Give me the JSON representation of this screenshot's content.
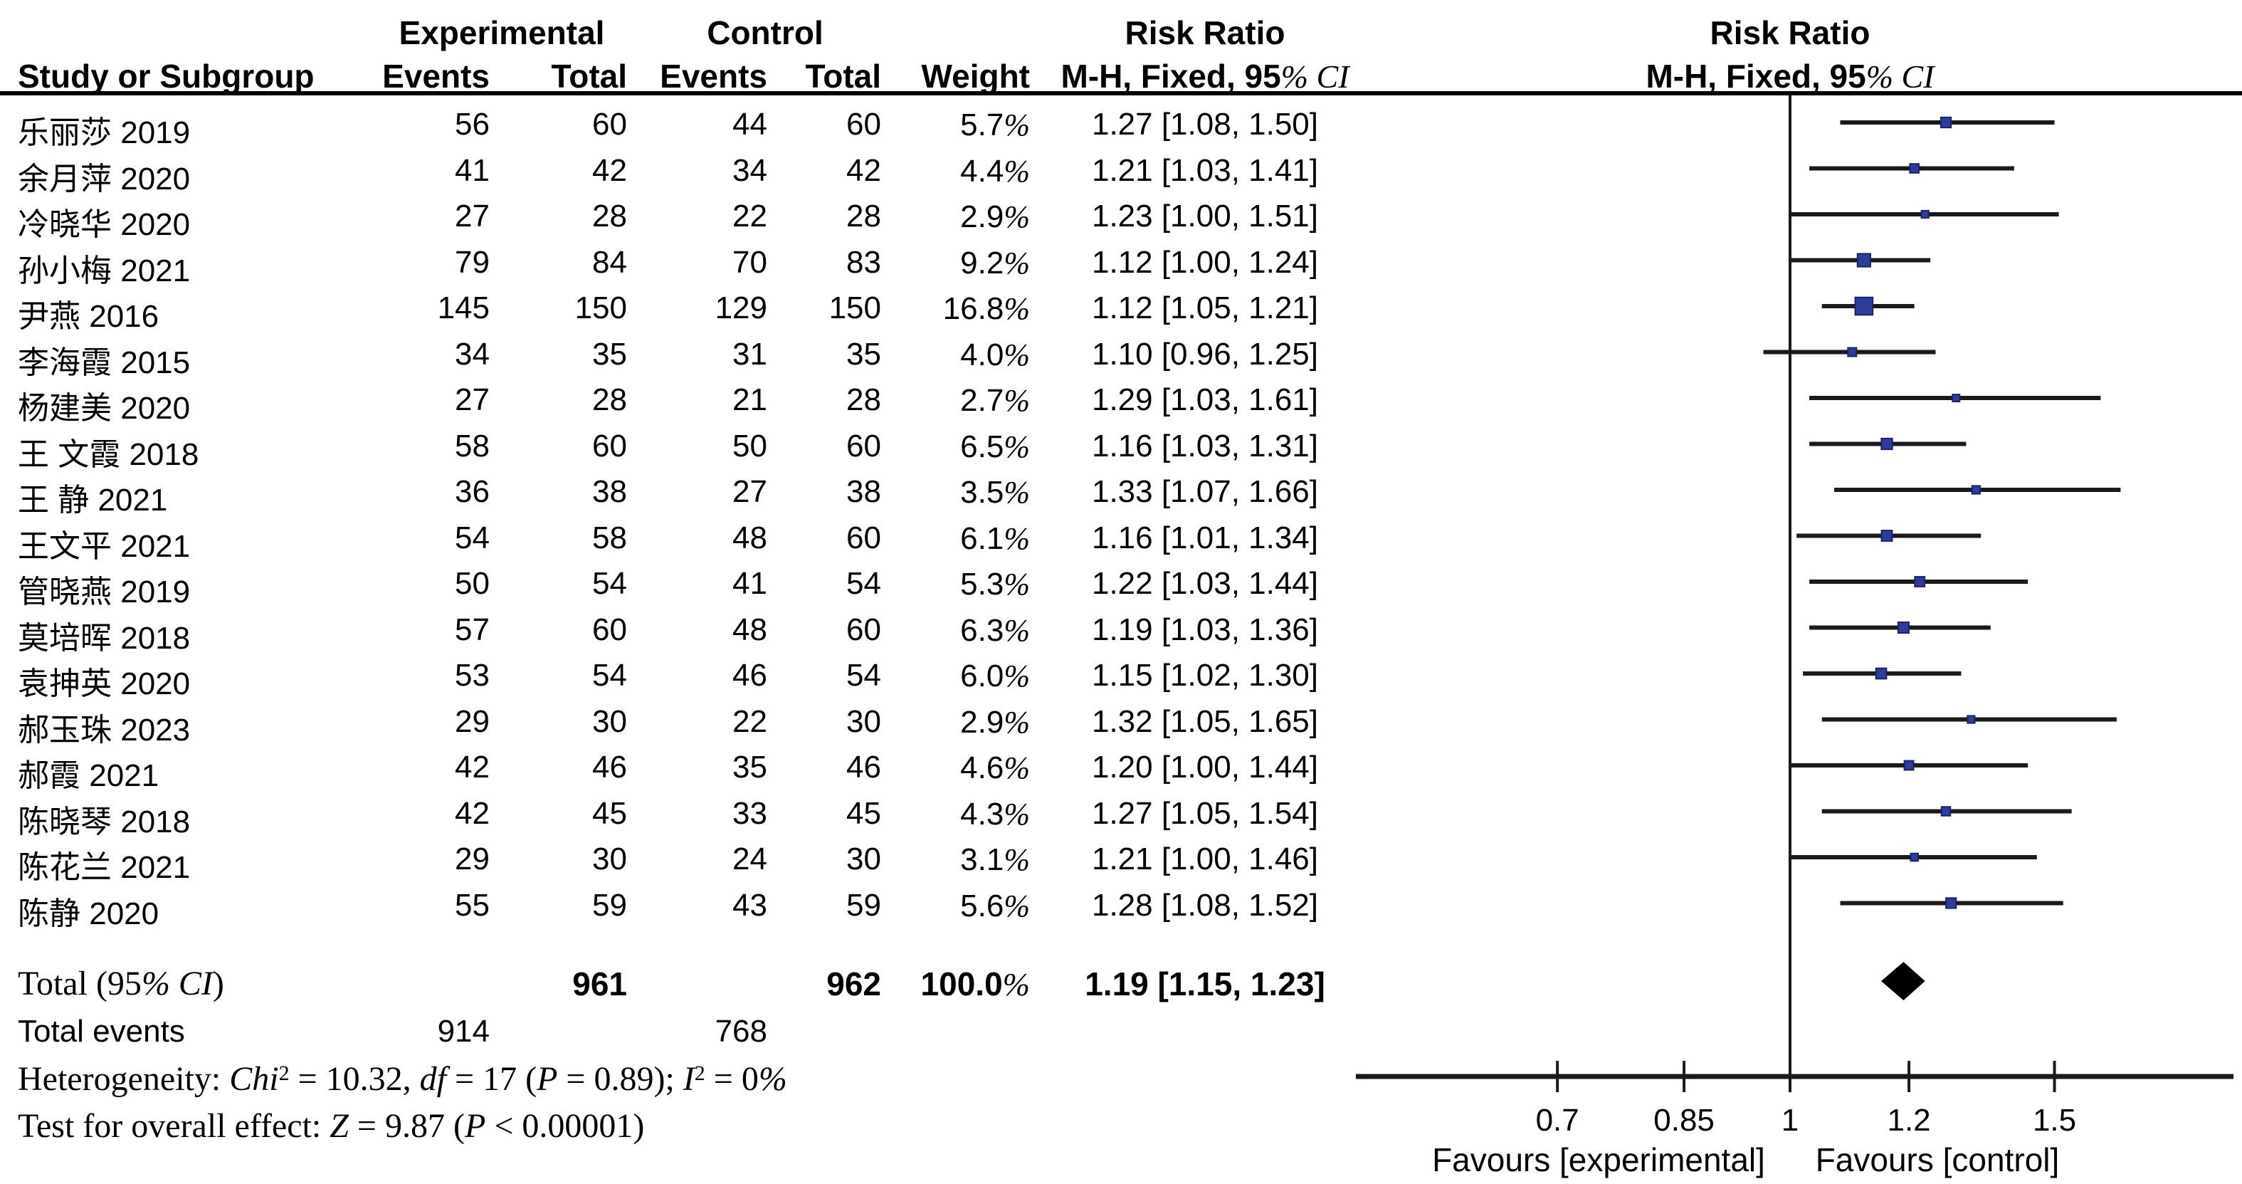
{
  "misc": {
    "percent": "%"
  },
  "table": {
    "header": {
      "experimental": "Experimental",
      "control": "Control",
      "risk_ratio": "Risk Ratio",
      "study": "Study or Subgroup",
      "events": "Events",
      "total": "Total",
      "weight": "Weight",
      "mh": [
        {
          "t": "M-H, Fixed, 95",
          "s": "b"
        },
        {
          "t": "% CI",
          "s": "bi"
        }
      ]
    },
    "rows": [
      {
        "study": "乐丽莎 2019",
        "e1": "56",
        "t1": "60",
        "e2": "44",
        "t2": "60",
        "weight": "5.7",
        "ci": "1.27 [1.08, 1.50]",
        "rr": 1.27,
        "lo": 1.08,
        "hi": 1.5,
        "w": 5.7
      },
      {
        "study": "余月萍 2020",
        "e1": "41",
        "t1": "42",
        "e2": "34",
        "t2": "42",
        "weight": "4.4",
        "ci": "1.21 [1.03, 1.41]",
        "rr": 1.21,
        "lo": 1.03,
        "hi": 1.41,
        "w": 4.4
      },
      {
        "study": "冷晓华 2020",
        "e1": "27",
        "t1": "28",
        "e2": "22",
        "t2": "28",
        "weight": "2.9",
        "ci": "1.23 [1.00, 1.51]",
        "rr": 1.23,
        "lo": 1.0,
        "hi": 1.51,
        "w": 2.9
      },
      {
        "study": "孙小梅 2021",
        "e1": "79",
        "t1": "84",
        "e2": "70",
        "t2": "83",
        "weight": "9.2",
        "ci": "1.12 [1.00, 1.24]",
        "rr": 1.12,
        "lo": 1.0,
        "hi": 1.24,
        "w": 9.2
      },
      {
        "study": "尹燕 2016",
        "e1": "145",
        "t1": "150",
        "e2": "129",
        "t2": "150",
        "weight": "16.8",
        "ci": "1.12 [1.05, 1.21]",
        "rr": 1.12,
        "lo": 1.05,
        "hi": 1.21,
        "w": 16.8
      },
      {
        "study": "李海霞 2015",
        "e1": "34",
        "t1": "35",
        "e2": "31",
        "t2": "35",
        "weight": "4.0",
        "ci": "1.10 [0.96, 1.25]",
        "rr": 1.1,
        "lo": 0.96,
        "hi": 1.25,
        "w": 4.0
      },
      {
        "study": "杨建美 2020",
        "e1": "27",
        "t1": "28",
        "e2": "21",
        "t2": "28",
        "weight": "2.7",
        "ci": "1.29 [1.03, 1.61]",
        "rr": 1.29,
        "lo": 1.03,
        "hi": 1.61,
        "w": 2.7
      },
      {
        "study": "王 文霞 2018",
        "e1": "58",
        "t1": "60",
        "e2": "50",
        "t2": "60",
        "weight": "6.5",
        "ci": "1.16 [1.03, 1.31]",
        "rr": 1.16,
        "lo": 1.03,
        "hi": 1.31,
        "w": 6.5
      },
      {
        "study": "王 静 2021",
        "e1": "36",
        "t1": "38",
        "e2": "27",
        "t2": "38",
        "weight": "3.5",
        "ci": "1.33 [1.07, 1.66]",
        "rr": 1.33,
        "lo": 1.07,
        "hi": 1.66,
        "w": 3.5
      },
      {
        "study": "王文平 2021",
        "e1": "54",
        "t1": "58",
        "e2": "48",
        "t2": "60",
        "weight": "6.1",
        "ci": "1.16 [1.01, 1.34]",
        "rr": 1.16,
        "lo": 1.01,
        "hi": 1.34,
        "w": 6.1
      },
      {
        "study": "管晓燕 2019",
        "e1": "50",
        "t1": "54",
        "e2": "41",
        "t2": "54",
        "weight": "5.3",
        "ci": "1.22 [1.03, 1.44]",
        "rr": 1.22,
        "lo": 1.03,
        "hi": 1.44,
        "w": 5.3
      },
      {
        "study": "莫培晖 2018",
        "e1": "57",
        "t1": "60",
        "e2": "48",
        "t2": "60",
        "weight": "6.3",
        "ci": "1.19 [1.03, 1.36]",
        "rr": 1.19,
        "lo": 1.03,
        "hi": 1.36,
        "w": 6.3
      },
      {
        "study": "袁抻英 2020",
        "e1": "53",
        "t1": "54",
        "e2": "46",
        "t2": "54",
        "weight": "6.0",
        "ci": "1.15 [1.02, 1.30]",
        "rr": 1.15,
        "lo": 1.02,
        "hi": 1.3,
        "w": 6.0
      },
      {
        "study": "郝玉珠 2023",
        "e1": "29",
        "t1": "30",
        "e2": "22",
        "t2": "30",
        "weight": "2.9",
        "ci": "1.32 [1.05, 1.65]",
        "rr": 1.32,
        "lo": 1.05,
        "hi": 1.65,
        "w": 2.9
      },
      {
        "study": "郝霞 2021",
        "e1": "42",
        "t1": "46",
        "e2": "35",
        "t2": "46",
        "weight": "4.6",
        "ci": "1.20 [1.00, 1.44]",
        "rr": 1.2,
        "lo": 1.0,
        "hi": 1.44,
        "w": 4.6
      },
      {
        "study": "陈晓琴 2018",
        "e1": "42",
        "t1": "45",
        "e2": "33",
        "t2": "45",
        "weight": "4.3",
        "ci": "1.27 [1.05, 1.54]",
        "rr": 1.27,
        "lo": 1.05,
        "hi": 1.54,
        "w": 4.3
      },
      {
        "study": "陈花兰 2021",
        "e1": "29",
        "t1": "30",
        "e2": "24",
        "t2": "30",
        "weight": "3.1",
        "ci": "1.21 [1.00, 1.46]",
        "rr": 1.21,
        "lo": 1.0,
        "hi": 1.46,
        "w": 3.1
      },
      {
        "study": "陈静 2020",
        "e1": "55",
        "t1": "59",
        "e2": "43",
        "t2": "59",
        "weight": "5.6",
        "ci": "1.28 [1.08, 1.52]",
        "rr": 1.28,
        "lo": 1.08,
        "hi": 1.52,
        "w": 5.6
      }
    ],
    "totals": {
      "label": [
        {
          "t": "Total (95",
          "s": "r"
        },
        {
          "t": "% CI",
          "s": "i"
        },
        {
          "t": ")",
          "s": "r"
        }
      ],
      "t1": "961",
      "t2": "962",
      "weight": [
        {
          "t": "100.0",
          "s": "b"
        },
        {
          "t": "%",
          "s": "bi"
        }
      ],
      "ci": "1.19 [1.15, 1.23]",
      "rr": 1.19,
      "lo": 1.15,
      "hi": 1.23,
      "events_label": "Total events",
      "e1": "914",
      "e2": "768"
    },
    "stats": {
      "heterogeneity": [
        {
          "t": "Heterogeneity: ",
          "s": "r"
        },
        {
          "t": "Chi",
          "s": "i"
        },
        {
          "t": "2",
          "s": "sup"
        },
        {
          "t": " = 10.32, ",
          "s": "r"
        },
        {
          "t": "df",
          "s": "i"
        },
        {
          "t": " = 17 (",
          "s": "r"
        },
        {
          "t": "P",
          "s": "i"
        },
        {
          "t": " = 0.89); ",
          "s": "r"
        },
        {
          "t": "I",
          "s": "i"
        },
        {
          "t": "2",
          "s": "sup"
        },
        {
          "t": " = 0",
          "s": "r"
        },
        {
          "t": "%",
          "s": "i"
        }
      ],
      "overall": [
        {
          "t": "Test for overall effect: ",
          "s": "r"
        },
        {
          "t": "Z",
          "s": "i"
        },
        {
          "t": " = 9.87 (",
          "s": "r"
        },
        {
          "t": "P",
          "s": "i"
        },
        {
          "t": " < 0.00001)",
          "s": "r"
        }
      ]
    }
  },
  "plot": {
    "ticks": [
      {
        "v": 0.7,
        "label": "0.7"
      },
      {
        "v": 0.85,
        "label": "0.85"
      },
      {
        "v": 1,
        "label": "1"
      },
      {
        "v": 1.2,
        "label": "1.2"
      },
      {
        "v": 1.5,
        "label": "1.5"
      }
    ],
    "favours_left": "Favours [experimental]",
    "favours_right": "Favours [control]",
    "colors": {
      "line": "#1a1a1a",
      "square": "#2e3c9e",
      "square_border": "#1b2368",
      "diamond": "#000000"
    }
  },
  "chart_data": {
    "type": "scatter",
    "variant": "forest-plot-meta-analysis",
    "title": "Risk Ratio",
    "effect_measure": "M-H, Fixed, 95% CI",
    "x_scale": "log",
    "x_ticks": [
      0.7,
      0.85,
      1,
      1.2,
      1.5
    ],
    "xlabel_left": "Favours [experimental]",
    "xlabel_right": "Favours [control]",
    "categories": [
      "乐丽莎 2019",
      "余月萍 2020",
      "冷晓华 2020",
      "孙小梅 2021",
      "尹燕 2016",
      "李海霞 2015",
      "杨建美 2020",
      "王 文霞 2018",
      "王 静 2021",
      "王文平 2021",
      "管晓燕 2019",
      "莫培晖 2018",
      "袁抻英 2020",
      "郝玉珠 2023",
      "郝霞 2021",
      "陈晓琴 2018",
      "陈花兰 2021",
      "陈静 2020"
    ],
    "series": [
      {
        "name": "risk_ratio",
        "values": [
          1.27,
          1.21,
          1.23,
          1.12,
          1.12,
          1.1,
          1.29,
          1.16,
          1.33,
          1.16,
          1.22,
          1.19,
          1.15,
          1.32,
          1.2,
          1.27,
          1.21,
          1.28
        ]
      },
      {
        "name": "ci_lower",
        "values": [
          1.08,
          1.03,
          1.0,
          1.0,
          1.05,
          0.96,
          1.03,
          1.03,
          1.07,
          1.01,
          1.03,
          1.03,
          1.02,
          1.05,
          1.0,
          1.05,
          1.0,
          1.08
        ]
      },
      {
        "name": "ci_upper",
        "values": [
          1.5,
          1.41,
          1.51,
          1.24,
          1.21,
          1.25,
          1.61,
          1.31,
          1.66,
          1.34,
          1.44,
          1.36,
          1.3,
          1.65,
          1.44,
          1.54,
          1.46,
          1.52
        ]
      },
      {
        "name": "weight_pct",
        "values": [
          5.7,
          4.4,
          2.9,
          9.2,
          16.8,
          4.0,
          2.7,
          6.5,
          3.5,
          6.1,
          5.3,
          6.3,
          6.0,
          2.9,
          4.6,
          4.3,
          3.1,
          5.6
        ]
      },
      {
        "name": "experimental_events",
        "values": [
          56,
          41,
          27,
          79,
          145,
          34,
          27,
          58,
          36,
          54,
          50,
          57,
          53,
          29,
          42,
          42,
          29,
          55
        ]
      },
      {
        "name": "experimental_total",
        "values": [
          60,
          42,
          28,
          84,
          150,
          35,
          28,
          60,
          38,
          58,
          54,
          60,
          54,
          30,
          46,
          45,
          30,
          59
        ]
      },
      {
        "name": "control_events",
        "values": [
          44,
          34,
          22,
          70,
          129,
          31,
          21,
          50,
          27,
          48,
          41,
          48,
          46,
          22,
          35,
          33,
          24,
          43
        ]
      },
      {
        "name": "control_total",
        "values": [
          60,
          42,
          28,
          83,
          150,
          35,
          28,
          60,
          38,
          60,
          54,
          60,
          54,
          30,
          46,
          45,
          30,
          59
        ]
      }
    ],
    "total": {
      "label": "Total (95% CI)",
      "experimental_total": 961,
      "control_total": 962,
      "weight_pct": 100.0,
      "risk_ratio": 1.19,
      "ci_lower": 1.15,
      "ci_upper": 1.23,
      "experimental_events": 914,
      "control_events": 768
    },
    "heterogeneity": "Chi2 = 10.32, df = 17 (P = 0.89); I2 = 0%",
    "overall_effect": "Z = 9.87 (P < 0.00001)"
  }
}
